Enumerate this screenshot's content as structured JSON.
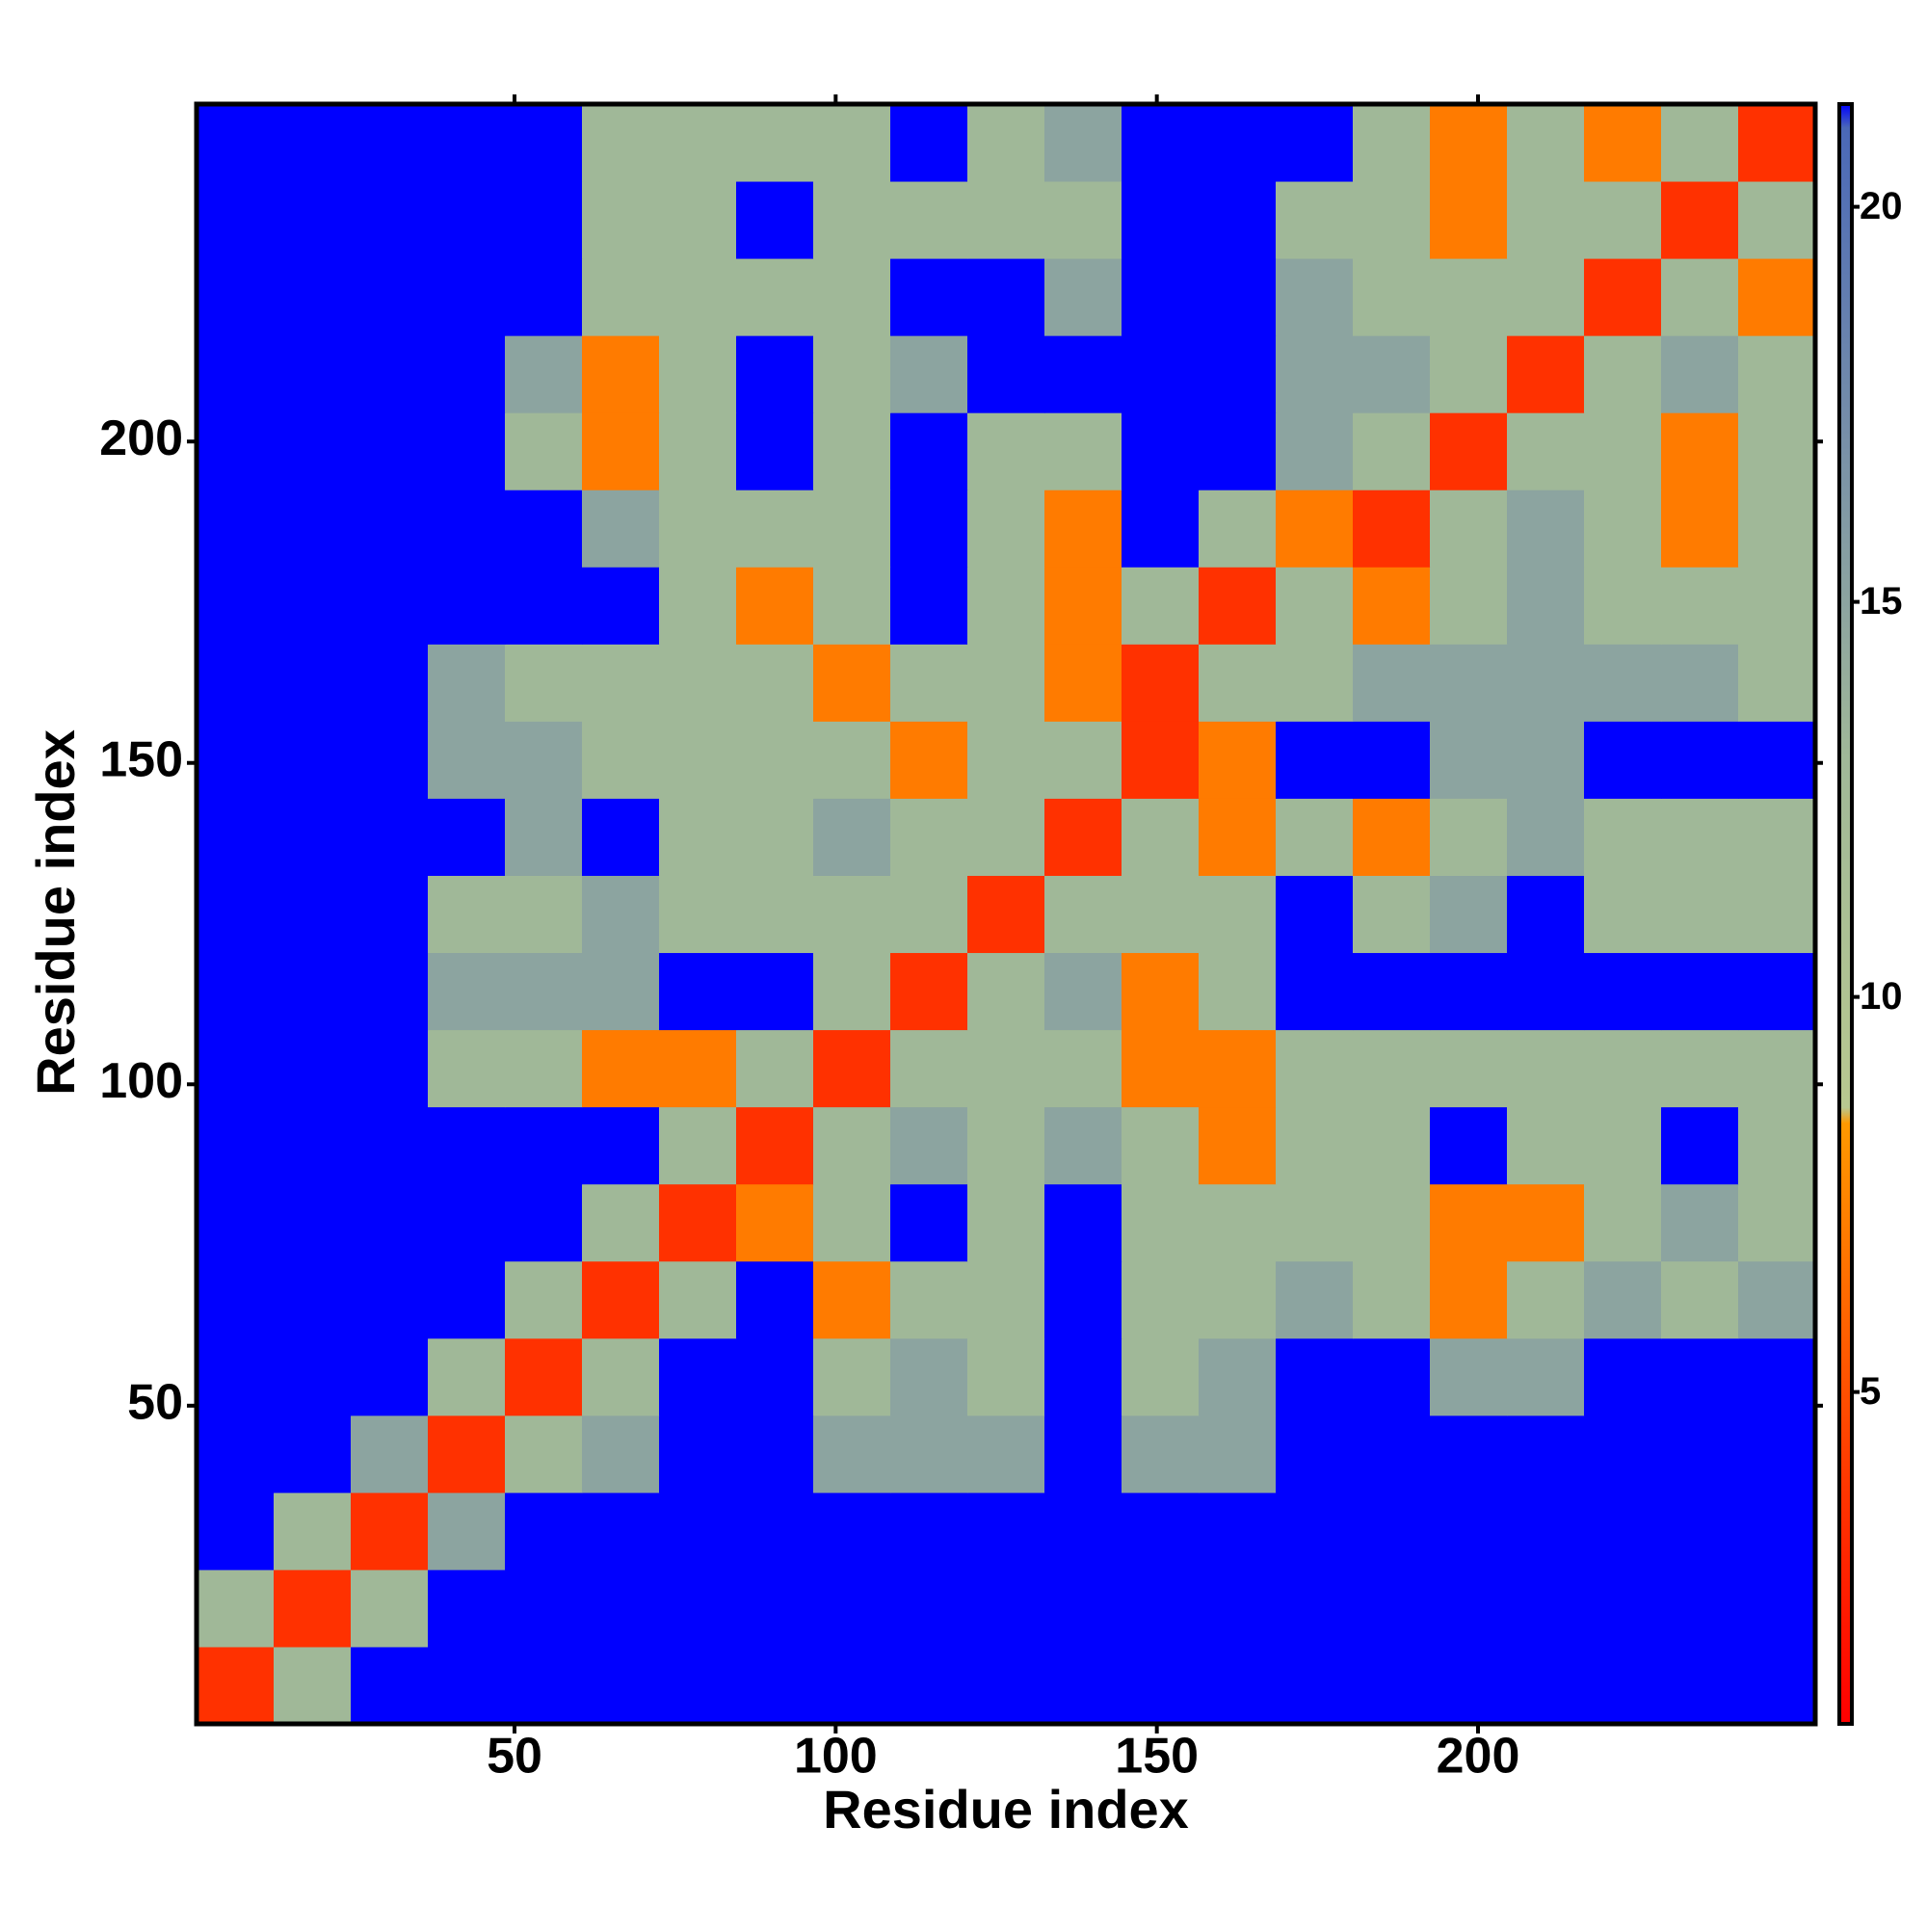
{
  "chart_data": {
    "type": "heatmap",
    "xlabel": "Residue index",
    "ylabel": "Residue index",
    "xbins": [
      0.5,
      12.5,
      24.5,
      36.5,
      48.5,
      60.5,
      72.5,
      84.5,
      96.5,
      108.5,
      120.5,
      132.5,
      144.5,
      156.5,
      168.5,
      180.5,
      192.5,
      204.5,
      216.5,
      228.5,
      240.5,
      252.5
    ],
    "ybins": [
      0.5,
      12.5,
      24.5,
      36.5,
      48.5,
      60.5,
      72.5,
      84.5,
      96.5,
      108.5,
      120.5,
      132.5,
      144.5,
      156.5,
      168.5,
      180.5,
      192.5,
      204.5,
      216.5,
      228.5,
      240.5,
      252.5
    ],
    "xlim": [
      0.5,
      252.5
    ],
    "ylim": [
      0.5,
      252.5
    ],
    "xticks": [
      50,
      100,
      150,
      200
    ],
    "yticks": [
      50,
      100,
      150,
      200
    ],
    "zlim": [
      0.8,
      21.3
    ],
    "zticks": [
      5,
      10,
      15,
      20
    ],
    "colorscale": [
      [
        0.8,
        "#ff0000"
      ],
      [
        4,
        "#ff3a00"
      ],
      [
        8.4,
        "#ff9900"
      ],
      [
        8.6,
        "#b8c890"
      ],
      [
        13,
        "#a0b898"
      ],
      [
        17,
        "#7890a8"
      ],
      [
        21,
        "#4a68b8"
      ],
      [
        21.3,
        "#0000ff"
      ]
    ],
    "z": [
      [
        3.5,
        13,
        22,
        22,
        22,
        22,
        22,
        22,
        22,
        22,
        22,
        22,
        22,
        22,
        22,
        22,
        22,
        22,
        22,
        22,
        22
      ],
      [
        13,
        3.5,
        13,
        22,
        22,
        22,
        22,
        22,
        22,
        22,
        22,
        22,
        22,
        22,
        22,
        22,
        22,
        22,
        22,
        22,
        22
      ],
      [
        22,
        13,
        3.5,
        15,
        22,
        22,
        22,
        22,
        22,
        22,
        22,
        22,
        22,
        22,
        22,
        22,
        22,
        22,
        22,
        22,
        22
      ],
      [
        22,
        22,
        15,
        3.5,
        13,
        15,
        22,
        22,
        15,
        15,
        15,
        22,
        15,
        15,
        22,
        22,
        22,
        22,
        22,
        22,
        22
      ],
      [
        22,
        22,
        22,
        13,
        3.5,
        13,
        22,
        22,
        13,
        15,
        13,
        22,
        13,
        15,
        22,
        22,
        15,
        15,
        22,
        22,
        22
      ],
      [
        22,
        22,
        22,
        22,
        13,
        3.5,
        13,
        22,
        7,
        13,
        13,
        22,
        13,
        13,
        15,
        13,
        7,
        13,
        15,
        13,
        15
      ],
      [
        22,
        22,
        22,
        22,
        22,
        13,
        3.5,
        7,
        13,
        22,
        13,
        22,
        13,
        13,
        13,
        13,
        7,
        7,
        13,
        15,
        13
      ],
      [
        22,
        22,
        22,
        22,
        22,
        22,
        13,
        3.5,
        13,
        15,
        13,
        15,
        13,
        7,
        13,
        13,
        22,
        13,
        13,
        22,
        13
      ],
      [
        22,
        22,
        22,
        13,
        13,
        7,
        7,
        13,
        3.5,
        13,
        13,
        13,
        7,
        7,
        13,
        13,
        13,
        13,
        13,
        13,
        13
      ],
      [
        22,
        22,
        22,
        15,
        15,
        15,
        22,
        22,
        13,
        3.5,
        13,
        15,
        7,
        13,
        22,
        22,
        22,
        22,
        22,
        22,
        22
      ],
      [
        22,
        22,
        22,
        13,
        13,
        15,
        13,
        13,
        13,
        13,
        3.5,
        13,
        13,
        13,
        22,
        13,
        15,
        22,
        13,
        13,
        13
      ],
      [
        22,
        22,
        22,
        22,
        15,
        22,
        13,
        13,
        15,
        13,
        13,
        3.5,
        13,
        7,
        13,
        7,
        13,
        15,
        13,
        13,
        13
      ],
      [
        22,
        22,
        22,
        15,
        15,
        13,
        13,
        13,
        13,
        7,
        13,
        13,
        3.5,
        7,
        22,
        22,
        15,
        15,
        22,
        22,
        22
      ],
      [
        22,
        22,
        22,
        15,
        13,
        13,
        13,
        13,
        7,
        13,
        13,
        7,
        3.5,
        13,
        13,
        15,
        15,
        15,
        15,
        15,
        13
      ],
      [
        22,
        22,
        22,
        22,
        22,
        22,
        13,
        7,
        13,
        22,
        13,
        7,
        13,
        3.5,
        13,
        7,
        13,
        15,
        13,
        13,
        13
      ],
      [
        22,
        22,
        22,
        22,
        22,
        15,
        13,
        13,
        13,
        22,
        13,
        7,
        22,
        13,
        7,
        3.5,
        13,
        15,
        13,
        7,
        13
      ],
      [
        22,
        22,
        22,
        22,
        13,
        7,
        13,
        22,
        13,
        22,
        13,
        13,
        22,
        22,
        15,
        13,
        3.5,
        13,
        13,
        7,
        13
      ],
      [
        22,
        22,
        22,
        22,
        15,
        7,
        13,
        22,
        13,
        15,
        22,
        22,
        22,
        22,
        15,
        15,
        13,
        3.5,
        13,
        15,
        13
      ],
      [
        22,
        22,
        22,
        22,
        22,
        13,
        13,
        13,
        13,
        22,
        22,
        15,
        22,
        22,
        15,
        13,
        13,
        13,
        3.5,
        13,
        7
      ],
      [
        22,
        22,
        22,
        22,
        22,
        13,
        13,
        22,
        13,
        13,
        13,
        13,
        22,
        22,
        13,
        13,
        7,
        13,
        13,
        3.5,
        13
      ],
      [
        22,
        22,
        22,
        22,
        22,
        13,
        13,
        13,
        13,
        22,
        13,
        15,
        22,
        22,
        22,
        13,
        7,
        13,
        7,
        13,
        3.5
      ]
    ]
  }
}
